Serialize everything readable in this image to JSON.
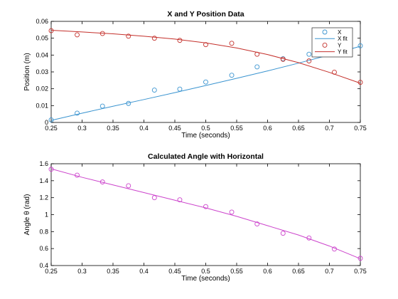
{
  "chart_data": [
    {
      "type": "scatter",
      "title": "X and Y Position Data",
      "xlabel": "Time (seconds)",
      "ylabel": "Position (m)",
      "xlim": [
        0.25,
        0.75
      ],
      "ylim": [
        0,
        0.06
      ],
      "xticks": [
        "0.25",
        "0.3",
        "0.35",
        "0.4",
        "0.45",
        "0.5",
        "0.55",
        "0.6",
        "0.65",
        "0.7",
        "0.75"
      ],
      "yticks": [
        "0",
        "0.01",
        "0.02",
        "0.03",
        "0.04",
        "0.05",
        "0.06"
      ],
      "grid": false,
      "legend": "top-right",
      "x": [
        0.25,
        0.292,
        0.333,
        0.375,
        0.417,
        0.458,
        0.5,
        0.542,
        0.583,
        0.625,
        0.667,
        0.708,
        0.75
      ],
      "series": [
        {
          "name": "X",
          "kind": "markers",
          "color": "#3a94d0",
          "values": [
            0.0015,
            0.0055,
            0.0097,
            0.0113,
            0.0192,
            0.0198,
            0.024,
            0.028,
            0.033,
            0.0378,
            0.0405,
            0.0432,
            0.0455
          ]
        },
        {
          "name": "X fit",
          "kind": "line",
          "color": "#3a94d0",
          "x": [
            0.25,
            0.3,
            0.35,
            0.4,
            0.45,
            0.5,
            0.55,
            0.6,
            0.65,
            0.7,
            0.75
          ],
          "values": [
            0.0012,
            0.0055,
            0.0096,
            0.0136,
            0.0177,
            0.0219,
            0.0262,
            0.0306,
            0.0352,
            0.0401,
            0.0452
          ]
        },
        {
          "name": "Y",
          "kind": "markers",
          "color": "#c4302b",
          "values": [
            0.0545,
            0.052,
            0.0528,
            0.0512,
            0.05,
            0.0487,
            0.0462,
            0.047,
            0.0405,
            0.0375,
            0.0365,
            0.0298,
            0.0238
          ]
        },
        {
          "name": "Y fit",
          "kind": "line",
          "color": "#c4302b",
          "x": [
            0.25,
            0.3,
            0.35,
            0.4,
            0.45,
            0.5,
            0.55,
            0.6,
            0.65,
            0.7,
            0.75
          ],
          "values": [
            0.0547,
            0.0537,
            0.0526,
            0.0512,
            0.0495,
            0.0472,
            0.0442,
            0.0403,
            0.0355,
            0.0297,
            0.0233
          ]
        }
      ]
    },
    {
      "type": "scatter",
      "title": "Calculated Angle with Horizontal",
      "xlabel": "Time (seconds)",
      "ylabel": "Angle θ (rad)",
      "xlim": [
        0.25,
        0.75
      ],
      "ylim": [
        0.4,
        1.6
      ],
      "xticks": [
        "0.25",
        "0.3",
        "0.35",
        "0.4",
        "0.45",
        "0.5",
        "0.55",
        "0.6",
        "0.65",
        "0.7",
        "0.75"
      ],
      "yticks": [
        "0.4",
        "0.6",
        "0.8",
        "1",
        "1.2",
        "1.4",
        "1.6"
      ],
      "grid": false,
      "x": [
        0.25,
        0.292,
        0.333,
        0.375,
        0.417,
        0.458,
        0.5,
        0.542,
        0.583,
        0.625,
        0.667,
        0.708,
        0.75
      ],
      "series": [
        {
          "kind": "markers",
          "color": "#cc44cc",
          "values": [
            1.535,
            1.465,
            1.385,
            1.34,
            1.2,
            1.175,
            1.095,
            1.03,
            0.89,
            0.78,
            0.725,
            0.595,
            0.485
          ]
        },
        {
          "kind": "line",
          "color": "#cc44cc",
          "x": [
            0.25,
            0.3,
            0.35,
            0.4,
            0.45,
            0.5,
            0.55,
            0.6,
            0.65,
            0.7,
            0.75
          ],
          "values": [
            1.54,
            1.44,
            1.35,
            1.26,
            1.17,
            1.08,
            0.98,
            0.87,
            0.76,
            0.63,
            0.48
          ]
        }
      ]
    }
  ]
}
